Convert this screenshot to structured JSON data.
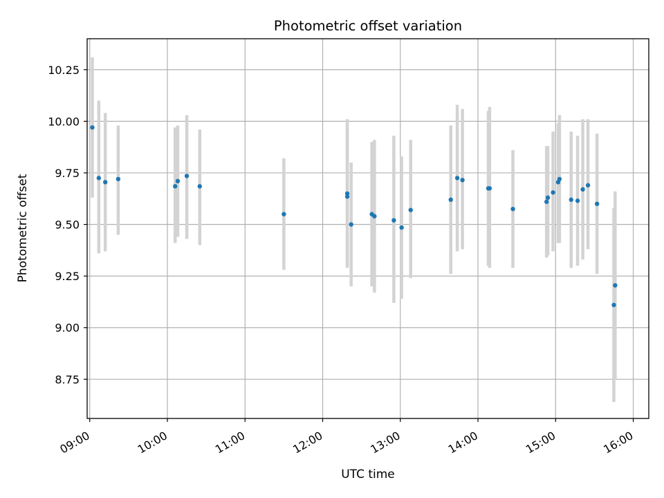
{
  "chart_data": {
    "type": "scatter",
    "title": "Photometric offset variation",
    "xlabel": "UTC time",
    "ylabel": "Photometric offset",
    "xlim": [
      "08:58",
      "16:12"
    ],
    "ylim": [
      8.56,
      10.4
    ],
    "x_ticks": [
      "09:00",
      "10:00",
      "11:00",
      "12:00",
      "13:00",
      "14:00",
      "15:00",
      "16:00"
    ],
    "y_ticks": [
      8.75,
      9.0,
      9.25,
      9.5,
      9.75,
      10.0,
      10.25
    ],
    "grid": true,
    "colors": {
      "points": "#1f77b4",
      "errorbars": "#d3d3d3",
      "grid": "#b0b0b0"
    },
    "points": [
      {
        "time": "09:02",
        "y": 9.97,
        "yerr_low": 9.63,
        "yerr_high": 10.31
      },
      {
        "time": "09:07",
        "y": 9.725,
        "yerr_low": 9.36,
        "yerr_high": 10.1
      },
      {
        "time": "09:12",
        "y": 9.705,
        "yerr_low": 9.37,
        "yerr_high": 10.04
      },
      {
        "time": "09:22",
        "y": 9.72,
        "yerr_low": 9.45,
        "yerr_high": 9.98
      },
      {
        "time": "10:06",
        "y": 9.685,
        "yerr_low": 9.41,
        "yerr_high": 9.97
      },
      {
        "time": "10:08",
        "y": 9.71,
        "yerr_low": 9.44,
        "yerr_high": 9.98
      },
      {
        "time": "10:15",
        "y": 9.735,
        "yerr_low": 9.43,
        "yerr_high": 10.03
      },
      {
        "time": "10:25",
        "y": 9.685,
        "yerr_low": 9.4,
        "yerr_high": 9.96
      },
      {
        "time": "11:30",
        "y": 9.55,
        "yerr_low": 9.28,
        "yerr_high": 9.82
      },
      {
        "time": "12:19",
        "y": 9.65,
        "yerr_low": 9.29,
        "yerr_high": 10.01
      },
      {
        "time": "12:19",
        "y": 9.635,
        "yerr_low": 9.3,
        "yerr_high": 9.97
      },
      {
        "time": "12:22",
        "y": 9.5,
        "yerr_low": 9.2,
        "yerr_high": 9.8
      },
      {
        "time": "12:38",
        "y": 9.55,
        "yerr_low": 9.2,
        "yerr_high": 9.9
      },
      {
        "time": "12:40",
        "y": 9.54,
        "yerr_low": 9.17,
        "yerr_high": 9.91
      },
      {
        "time": "12:55",
        "y": 9.52,
        "yerr_low": 9.12,
        "yerr_high": 9.93
      },
      {
        "time": "13:01",
        "y": 9.485,
        "yerr_low": 9.14,
        "yerr_high": 9.83
      },
      {
        "time": "13:08",
        "y": 9.57,
        "yerr_low": 9.24,
        "yerr_high": 9.91
      },
      {
        "time": "13:39",
        "y": 9.62,
        "yerr_low": 9.26,
        "yerr_high": 9.98
      },
      {
        "time": "13:44",
        "y": 9.725,
        "yerr_low": 9.37,
        "yerr_high": 10.08
      },
      {
        "time": "13:48",
        "y": 9.715,
        "yerr_low": 9.38,
        "yerr_high": 10.06
      },
      {
        "time": "14:08",
        "y": 9.675,
        "yerr_low": 9.3,
        "yerr_high": 10.05
      },
      {
        "time": "14:09",
        "y": 9.675,
        "yerr_low": 9.29,
        "yerr_high": 10.07
      },
      {
        "time": "14:27",
        "y": 9.575,
        "yerr_low": 9.29,
        "yerr_high": 9.86
      },
      {
        "time": "14:53",
        "y": 9.61,
        "yerr_low": 9.34,
        "yerr_high": 9.88
      },
      {
        "time": "14:54",
        "y": 9.63,
        "yerr_low": 9.35,
        "yerr_high": 9.88
      },
      {
        "time": "14:58",
        "y": 9.655,
        "yerr_low": 9.37,
        "yerr_high": 9.95
      },
      {
        "time": "15:02",
        "y": 9.705,
        "yerr_low": 9.41,
        "yerr_high": 9.99
      },
      {
        "time": "15:03",
        "y": 9.72,
        "yerr_low": 9.41,
        "yerr_high": 10.03
      },
      {
        "time": "15:12",
        "y": 9.62,
        "yerr_low": 9.29,
        "yerr_high": 9.95
      },
      {
        "time": "15:17",
        "y": 9.615,
        "yerr_low": 9.3,
        "yerr_high": 9.93
      },
      {
        "time": "15:21",
        "y": 9.67,
        "yerr_low": 9.33,
        "yerr_high": 10.01
      },
      {
        "time": "15:25",
        "y": 9.69,
        "yerr_low": 9.38,
        "yerr_high": 10.01
      },
      {
        "time": "15:32",
        "y": 9.6,
        "yerr_low": 9.26,
        "yerr_high": 9.94
      },
      {
        "time": "15:45",
        "y": 9.11,
        "yerr_low": 8.64,
        "yerr_high": 9.58
      },
      {
        "time": "15:46",
        "y": 9.205,
        "yerr_low": 8.75,
        "yerr_high": 9.66
      }
    ]
  }
}
